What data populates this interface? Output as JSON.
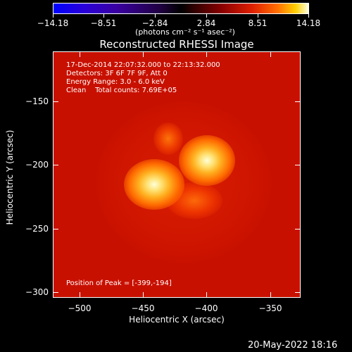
{
  "colorbar": {
    "tick_labels": [
      "−14.18",
      "−8.51",
      "−2.84",
      "2.84",
      "8.51",
      "14.18"
    ],
    "unit_label": "(photons cm⁻² s⁻¹ asec⁻²)"
  },
  "title": "Reconstructed RHESSI Image",
  "info": {
    "line1": "17-Dec-2014 22:07:32.000 to 22:13:32.000",
    "line2": "Detectors: 3F 6F 7F 9F, Att 0",
    "line3": "Energy Range: 3.0 - 6.0 keV",
    "line4": "Clean    Total counts: 7.69E+05",
    "peak": "Position of Peak = [-399,-194]"
  },
  "axes": {
    "xlabel": "Heliocentric X (arcsec)",
    "ylabel": "Heliocentric Y (arcsec)",
    "xticks": [
      "−500",
      "−450",
      "−400",
      "−350"
    ],
    "yticks": [
      "−150",
      "−200",
      "−250",
      "−300"
    ]
  },
  "footer": {
    "timestamp": "20-May-2022 18:16"
  },
  "colors": {
    "background": "#c81000",
    "hot": "#ffffd8"
  }
}
